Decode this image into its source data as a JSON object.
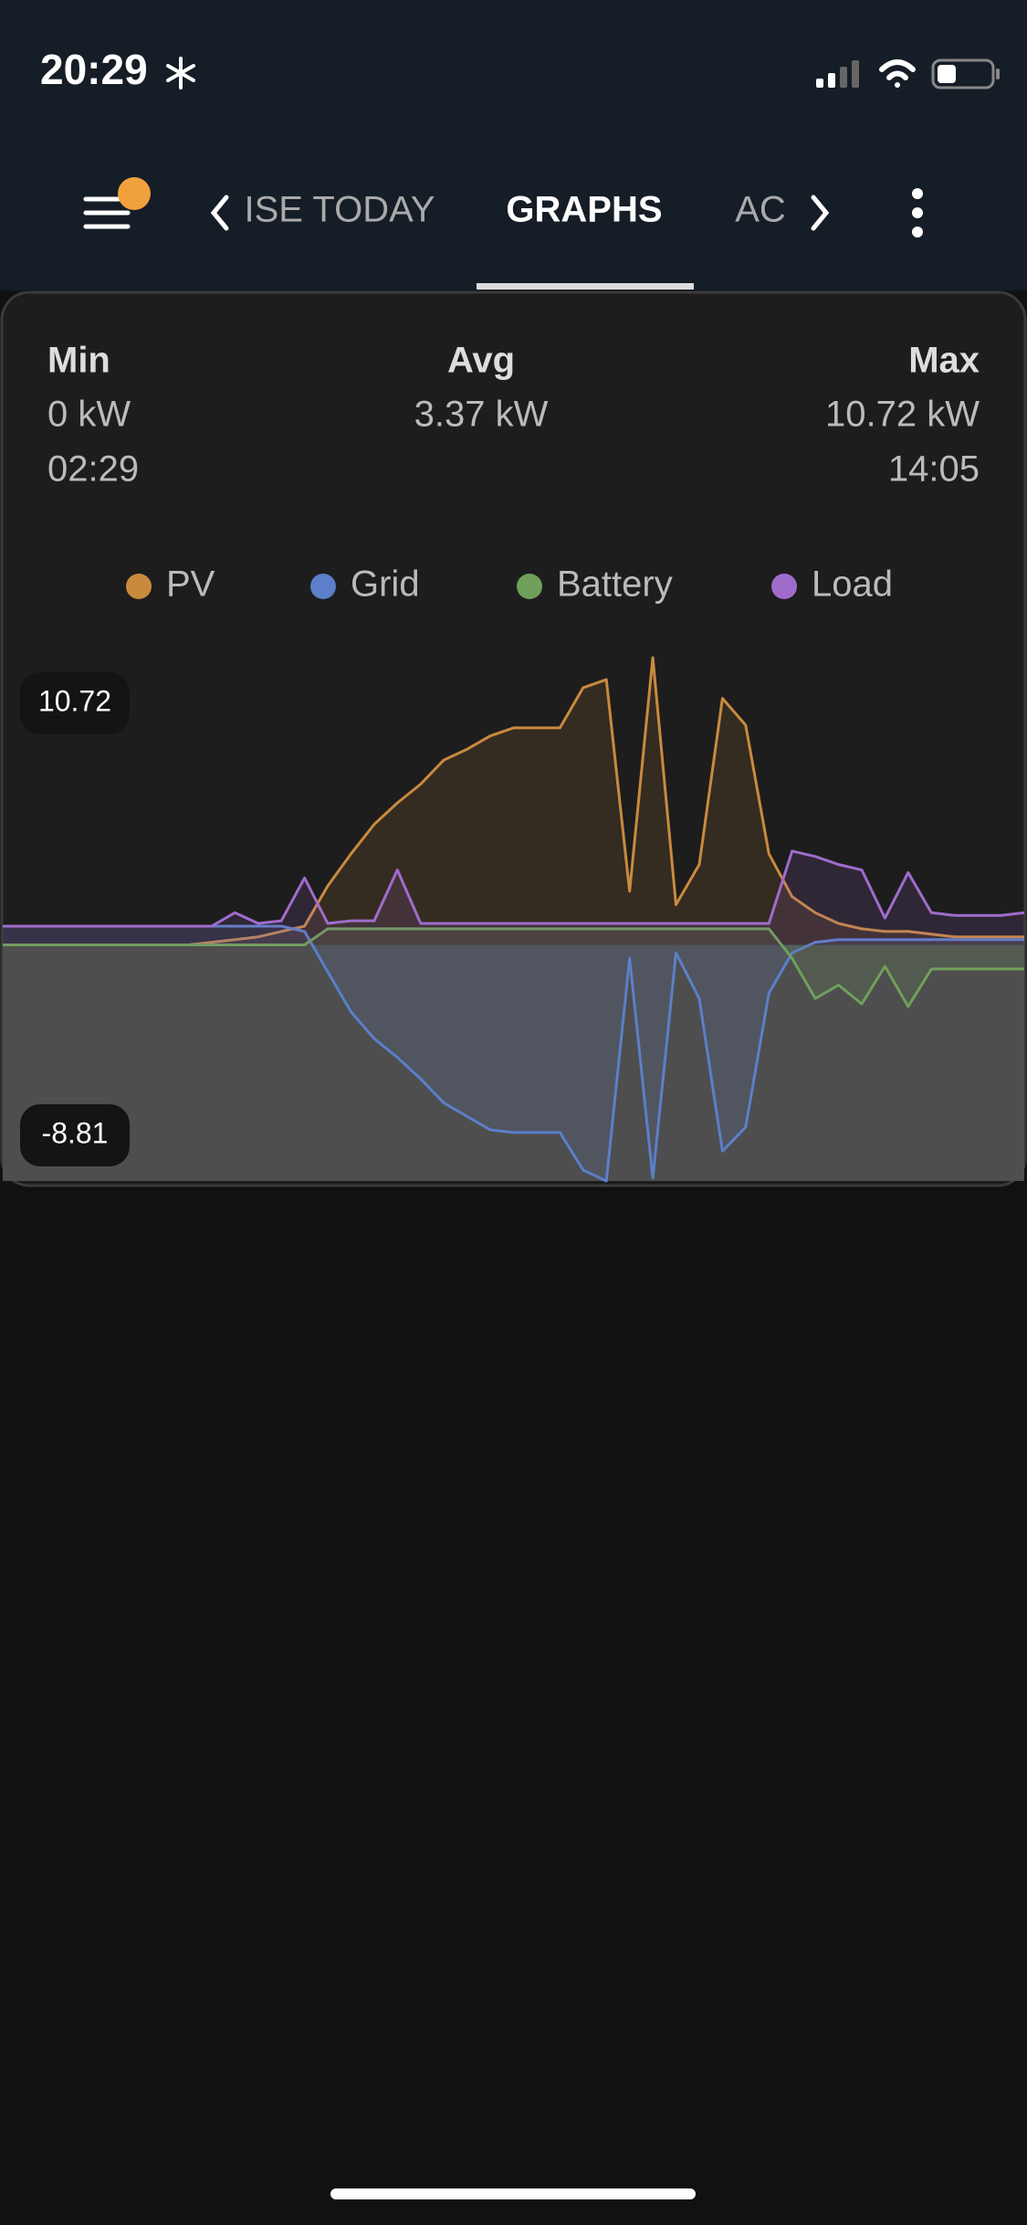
{
  "status_bar": {
    "time": "20:29"
  },
  "tabs": [
    "ISE TODAY",
    "GRAPHS",
    "AC"
  ],
  "stats": {
    "min": {
      "label": "Min",
      "value": "0 kW",
      "time": "02:29"
    },
    "avg": {
      "label": "Avg",
      "value": "3.37 kW"
    },
    "max": {
      "label": "Max",
      "value": "10.72 kW",
      "time": "14:05"
    }
  },
  "chart_data": {
    "type": "line",
    "x": [
      0,
      0.5,
      1,
      1.5,
      2,
      2.5,
      3,
      3.5,
      4,
      4.5,
      5,
      5.5,
      6,
      6.5,
      7,
      7.5,
      8,
      8.5,
      9,
      9.5,
      10,
      10.5,
      11,
      11.5,
      12,
      12.5,
      13,
      13.5,
      14,
      14.5,
      15,
      15.5,
      16,
      16.5,
      17,
      17.5,
      18,
      18.5,
      19,
      19.5,
      20,
      20.5,
      21,
      21.5,
      22
    ],
    "xlim": [
      0,
      22
    ],
    "ylim": [
      -8.81,
      10.72
    ],
    "yticks": [
      -8.81,
      10.72
    ],
    "series": [
      {
        "name": "PV",
        "color": "#c98a3e",
        "values": [
          0,
          0,
          0,
          0,
          0,
          0,
          0,
          0,
          0,
          0.1,
          0.2,
          0.3,
          0.5,
          0.7,
          2.2,
          3.4,
          4.5,
          5.3,
          6.0,
          6.9,
          7.3,
          7.8,
          8.1,
          8.1,
          8.1,
          9.6,
          9.9,
          2.0,
          10.72,
          1.5,
          3.0,
          9.2,
          8.2,
          3.4,
          1.8,
          1.2,
          0.8,
          0.6,
          0.5,
          0.5,
          0.4,
          0.3,
          0.3,
          0.3,
          0.3
        ]
      },
      {
        "name": "Grid",
        "color": "#5b7fc9",
        "values": [
          0.7,
          0.7,
          0.7,
          0.7,
          0.7,
          0.7,
          0.7,
          0.7,
          0.7,
          0.7,
          0.7,
          0.7,
          0.7,
          0.5,
          -1,
          -2.5,
          -3.5,
          -4.2,
          -5.0,
          -5.9,
          -6.4,
          -6.9,
          -7.0,
          -7.0,
          -7.0,
          -8.4,
          -8.81,
          -0.5,
          -8.7,
          -0.3,
          -2.0,
          -7.7,
          -6.8,
          -1.8,
          -0.3,
          0.1,
          0.2,
          0.2,
          0.2,
          0.2,
          0.2,
          0.2,
          0.2,
          0.2,
          0.2
        ]
      },
      {
        "name": "Battery",
        "color": "#6fa05a",
        "values": [
          0,
          0,
          0,
          0,
          0,
          0,
          0,
          0,
          0,
          0,
          0,
          0,
          0,
          0,
          0.6,
          0.6,
          0.6,
          0.6,
          0.6,
          0.6,
          0.6,
          0.6,
          0.6,
          0.6,
          0.6,
          0.6,
          0.6,
          0.6,
          0.6,
          0.6,
          0.6,
          0.6,
          0.6,
          0.6,
          -0.5,
          -2.0,
          -1.5,
          -2.2,
          -0.8,
          -2.3,
          -0.9,
          -0.9,
          -0.9,
          -0.9,
          -0.9
        ]
      },
      {
        "name": "Load",
        "color": "#a06ccc",
        "values": [
          0.7,
          0.7,
          0.7,
          0.7,
          0.7,
          0.7,
          0.7,
          0.7,
          0.7,
          0.7,
          1.2,
          0.8,
          0.9,
          2.5,
          0.8,
          0.9,
          0.9,
          2.8,
          0.8,
          0.8,
          0.8,
          0.8,
          0.8,
          0.8,
          0.8,
          0.8,
          0.8,
          0.8,
          0.8,
          0.8,
          0.8,
          0.8,
          0.8,
          0.8,
          3.5,
          3.3,
          3.0,
          2.8,
          1.0,
          2.7,
          1.2,
          1.1,
          1.1,
          1.1,
          1.2
        ]
      }
    ]
  }
}
